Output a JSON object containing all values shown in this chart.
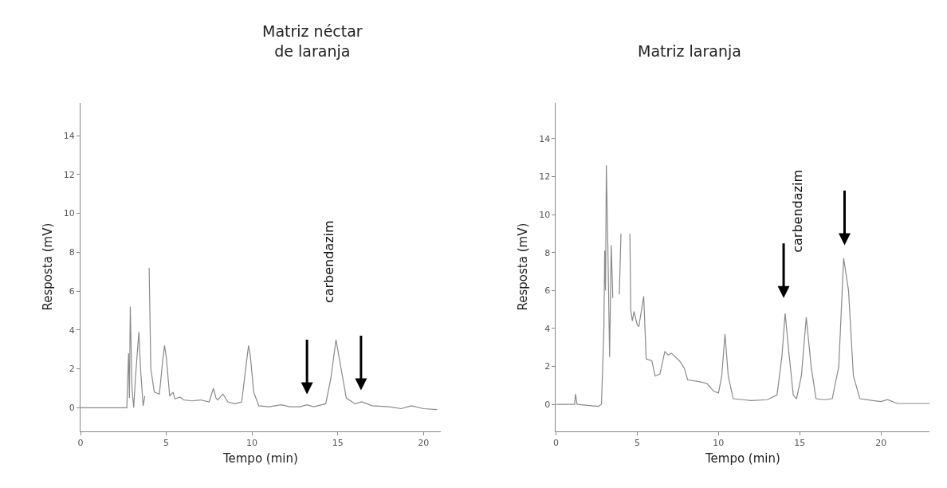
{
  "chart_data": [
    {
      "type": "line",
      "title": "Matriz néctar\nde laranja",
      "xlabel": "Tempo (min)",
      "ylabel": "Resposta (mV)",
      "xlim": [
        0,
        21
      ],
      "ylim": [
        -1.2,
        15.7
      ],
      "xticks": [
        0,
        5,
        10,
        15,
        20
      ],
      "yticks": [
        0,
        2,
        4,
        6,
        8,
        10,
        12,
        14
      ],
      "series": [
        {
          "color": "#8a8a8a",
          "x": [
            0,
            2.7,
            2.8,
            2.85,
            2.9,
            3.0,
            3.1,
            3.2,
            3.4,
            3.5,
            3.65,
            3.75,
            3.85,
            3.95,
            4.0,
            4.1,
            4.3,
            4.6,
            4.8,
            4.9,
            5.0,
            5.2,
            5.4,
            5.5,
            5.8,
            6.0,
            6.5,
            7.0,
            7.5,
            7.75,
            7.9,
            8.0,
            8.3,
            8.6,
            9.0,
            9.4,
            9.7,
            9.8,
            9.9,
            10.1,
            10.4,
            11.0,
            11.7,
            12.2,
            12.8,
            13.2,
            13.6,
            14.3,
            14.6,
            14.9,
            15.2,
            15.5,
            16.0,
            16.4,
            17.0,
            18.0,
            18.7,
            19.3,
            20.0,
            20.8
          ],
          "values": [
            0,
            0,
            2.8,
            0.5,
            5.2,
            1.0,
            0,
            1.5,
            3.9,
            2,
            0.1,
            0.6,
            null,
            null,
            7.2,
            2,
            0.8,
            0.7,
            2.5,
            3.2,
            2.6,
            0.6,
            0.8,
            0.45,
            0.55,
            0.4,
            0.35,
            0.4,
            0.3,
            1.0,
            0.5,
            0.4,
            0.7,
            0.3,
            0.2,
            0.3,
            2.5,
            3.2,
            2.7,
            0.8,
            0.1,
            0.05,
            0.15,
            0.05,
            0.05,
            0.15,
            0.05,
            0.2,
            1.5,
            3.5,
            2,
            0.5,
            0.2,
            0.3,
            0.1,
            0.05,
            -0.05,
            0.1,
            -0.05,
            -0.1
          ]
        }
      ],
      "annotations": [
        "carbendazim"
      ]
    },
    {
      "type": "line",
      "title": "Matriz laranja",
      "xlabel": "Tempo (min)",
      "ylabel": "Resposta (mV)",
      "xlim": [
        0,
        23
      ],
      "ylim": [
        -1.4,
        15.9
      ],
      "xticks": [
        0,
        5,
        10,
        15,
        20
      ],
      "yticks": [
        0,
        2,
        4,
        6,
        8,
        10,
        12,
        14
      ],
      "series": [
        {
          "color": "#8a8a8a",
          "x": [
            0,
            1.15,
            1.2,
            1.3,
            2.6,
            2.8,
            2.95,
            3.0,
            3.05,
            3.1,
            3.2,
            3.3,
            3.4,
            3.5,
            3.6,
            3.7,
            3.75,
            3.8,
            3.85,
            3.9,
            4.0,
            4.1,
            4.5,
            4.55,
            4.6,
            4.7,
            4.8,
            5.0,
            5.1,
            5.4,
            5.55,
            5.9,
            6.1,
            6.4,
            6.7,
            6.9,
            7.1,
            7.6,
            7.9,
            8.1,
            8.8,
            9.3,
            9.7,
            10.0,
            10.2,
            10.4,
            10.6,
            10.9,
            11.5,
            12.0,
            13.0,
            13.6,
            13.9,
            14.1,
            14.3,
            14.6,
            14.8,
            15.1,
            15.4,
            15.7,
            16.0,
            16.5,
            17.0,
            17.4,
            17.7,
            18.0,
            18.3,
            18.7,
            19.5,
            20.0,
            20.4,
            21.0,
            22.0,
            23.0
          ],
          "values": [
            0,
            0,
            0.55,
            0,
            -0.1,
            0,
            4,
            8.1,
            6,
            12.6,
            8,
            2.5,
            8.4,
            5.6,
            null,
            null,
            null,
            null,
            null,
            5.8,
            9,
            null,
            null,
            9,
            5,
            4.4,
            4.9,
            4.2,
            4.1,
            5.7,
            2.4,
            2.3,
            1.5,
            1.6,
            2.8,
            2.6,
            2.7,
            2.3,
            1.9,
            1.3,
            1.2,
            1.1,
            0.7,
            0.6,
            1.5,
            3.7,
            1.5,
            0.3,
            0.25,
            0.2,
            0.25,
            0.5,
            2.5,
            4.8,
            3,
            0.5,
            0.3,
            1.5,
            4.6,
            2,
            0.3,
            0.25,
            0.3,
            2,
            7.7,
            6,
            1.5,
            0.3,
            0.2,
            0.15,
            0.25,
            0.05,
            0.05,
            0.05
          ]
        }
      ],
      "annotations": [
        "carbendazim"
      ]
    }
  ]
}
